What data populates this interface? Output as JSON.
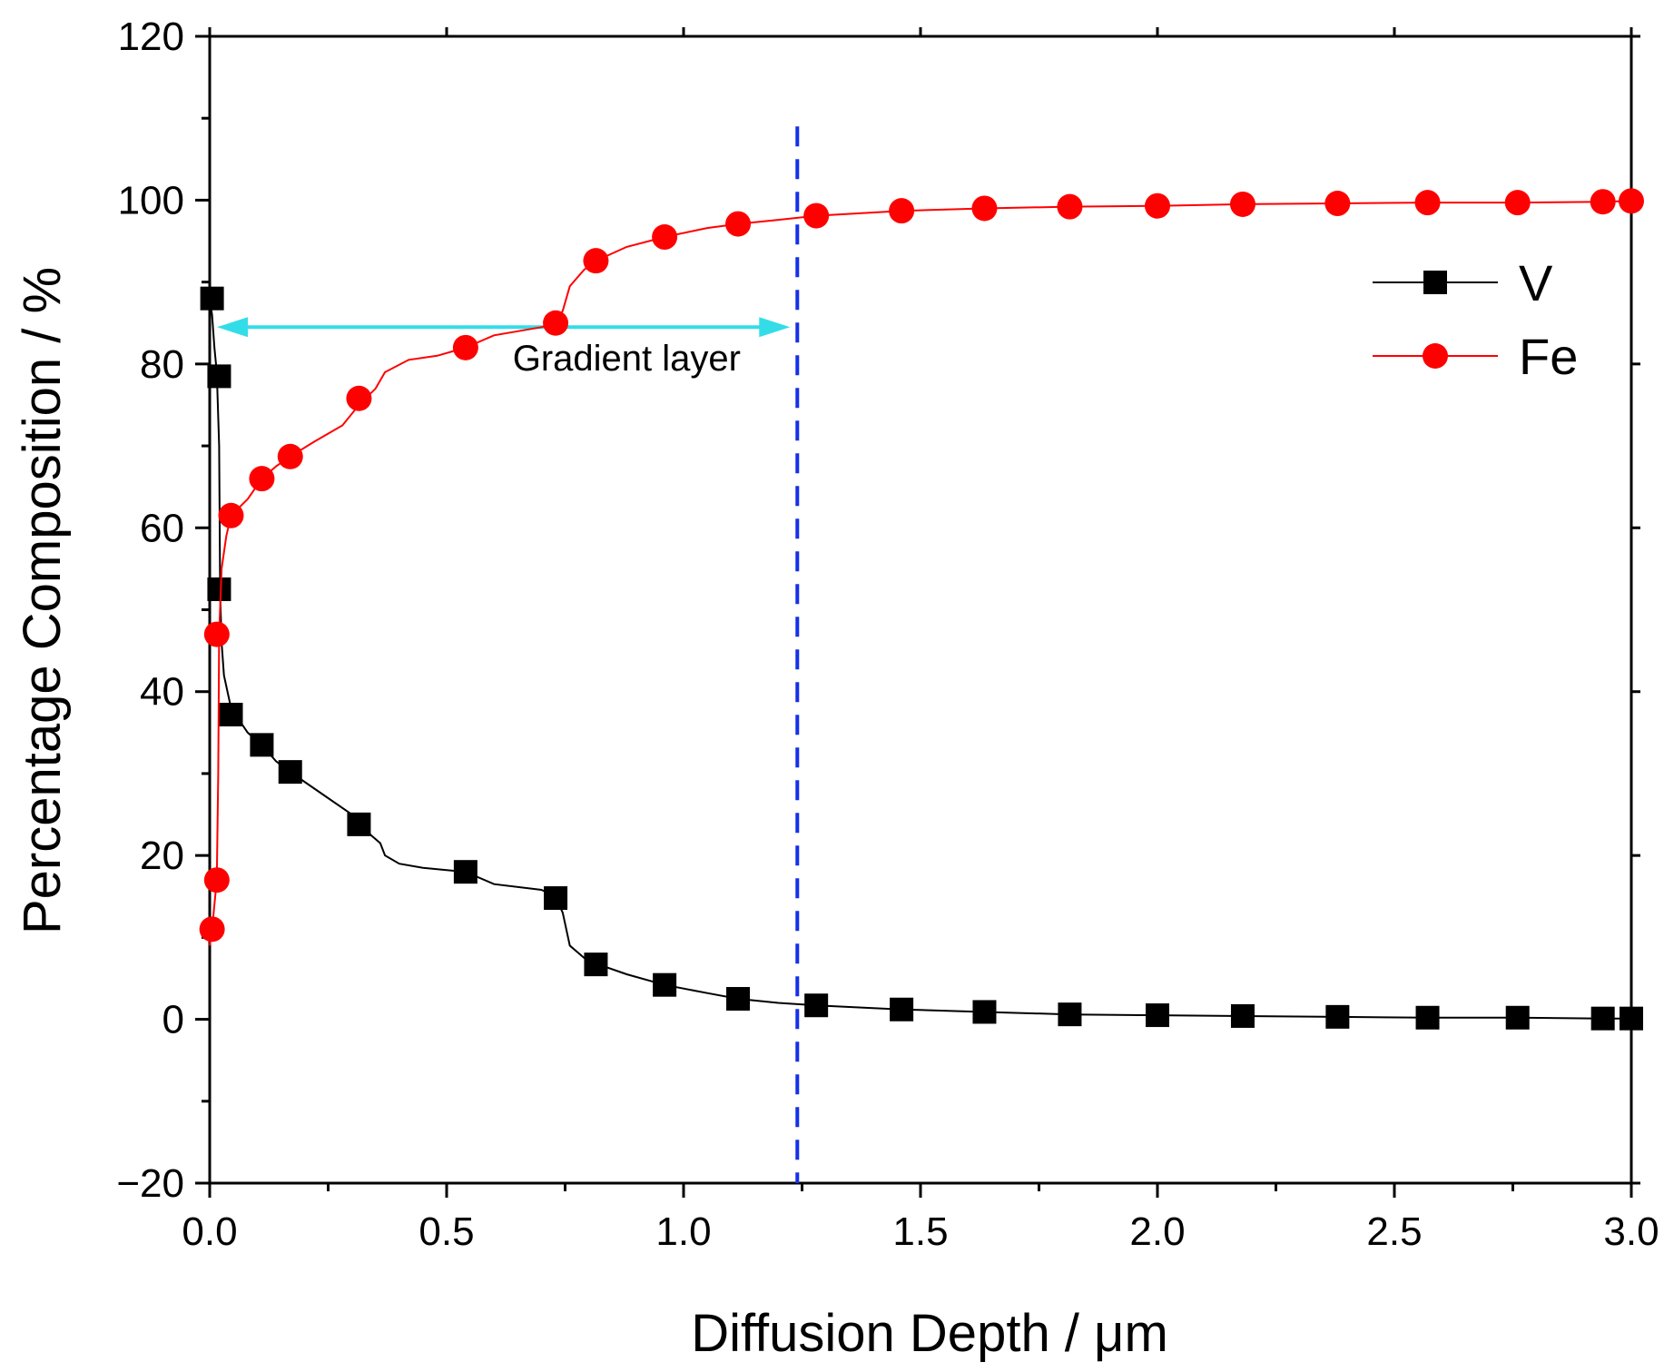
{
  "chart_data": {
    "type": "line",
    "xlabel": "Diffusion Depth / μm",
    "ylabel": "Percentage Composition / %",
    "xlim": [
      0,
      3.0
    ],
    "ylim": [
      -20,
      120
    ],
    "xticks": [
      0.0,
      0.5,
      1.0,
      1.5,
      2.0,
      2.5,
      3.0
    ],
    "xtick_labels": [
      "0.0",
      "0.5",
      "1.0",
      "1.5",
      "2.0",
      "2.5",
      "3.0"
    ],
    "yticks": [
      -20,
      0,
      20,
      40,
      60,
      80,
      100,
      120
    ],
    "ytick_labels": [
      "−20",
      "0",
      "20",
      "40",
      "60",
      "80",
      "100",
      "120"
    ],
    "grid": false,
    "legend_position": "top-right",
    "series": [
      {
        "name": "V",
        "color": "#000000",
        "marker": "square",
        "points": [
          [
            0.005,
            88
          ],
          [
            0.02,
            78.5
          ],
          [
            0.02,
            52.5
          ],
          [
            0.045,
            37.2
          ],
          [
            0.11,
            33.5
          ],
          [
            0.17,
            30.2
          ],
          [
            0.315,
            23.8
          ],
          [
            0.54,
            18
          ],
          [
            0.73,
            14.8
          ],
          [
            0.815,
            6.7
          ],
          [
            0.96,
            4.2
          ],
          [
            1.115,
            2.5
          ],
          [
            1.28,
            1.7
          ],
          [
            1.46,
            1.2
          ],
          [
            1.635,
            0.9
          ],
          [
            1.815,
            0.6
          ],
          [
            2.0,
            0.5
          ],
          [
            2.18,
            0.4
          ],
          [
            2.38,
            0.3
          ],
          [
            2.57,
            0.2
          ],
          [
            2.76,
            0.2
          ],
          [
            2.94,
            0.1
          ],
          [
            3.0,
            0.1
          ]
        ],
        "curve": [
          [
            0,
            88
          ],
          [
            0.005,
            86
          ],
          [
            0.01,
            82
          ],
          [
            0.015,
            79
          ],
          [
            0.02,
            70
          ],
          [
            0.022,
            52
          ],
          [
            0.025,
            46
          ],
          [
            0.03,
            42
          ],
          [
            0.045,
            38
          ],
          [
            0.08,
            35
          ],
          [
            0.11,
            33.5
          ],
          [
            0.14,
            31.5
          ],
          [
            0.17,
            30.2
          ],
          [
            0.2,
            29
          ],
          [
            0.25,
            27
          ],
          [
            0.3,
            25
          ],
          [
            0.34,
            22.5
          ],
          [
            0.36,
            21.5
          ],
          [
            0.37,
            20
          ],
          [
            0.4,
            19
          ],
          [
            0.45,
            18.5
          ],
          [
            0.54,
            18
          ],
          [
            0.6,
            16.5
          ],
          [
            0.7,
            15.8
          ],
          [
            0.73,
            15
          ],
          [
            0.745,
            13
          ],
          [
            0.76,
            9
          ],
          [
            0.79,
            7.5
          ],
          [
            0.82,
            6.7
          ],
          [
            0.88,
            5.5
          ],
          [
            0.96,
            4.2
          ],
          [
            1.05,
            3.2
          ],
          [
            1.115,
            2.5
          ],
          [
            1.2,
            2
          ],
          [
            1.28,
            1.7
          ],
          [
            1.46,
            1.2
          ],
          [
            1.635,
            0.9
          ],
          [
            1.815,
            0.6
          ],
          [
            2.0,
            0.5
          ],
          [
            2.18,
            0.4
          ],
          [
            2.38,
            0.3
          ],
          [
            2.57,
            0.2
          ],
          [
            2.76,
            0.2
          ],
          [
            2.94,
            0.1
          ],
          [
            3.0,
            0.1
          ]
        ]
      },
      {
        "name": "Fe",
        "color": "#ff0000",
        "marker": "circle",
        "points": [
          [
            0.005,
            11
          ],
          [
            0.015,
            17
          ],
          [
            0.015,
            47
          ],
          [
            0.045,
            61.5
          ],
          [
            0.11,
            66
          ],
          [
            0.17,
            68.7
          ],
          [
            0.315,
            75.8
          ],
          [
            0.54,
            82
          ],
          [
            0.73,
            85
          ],
          [
            0.815,
            92.6
          ],
          [
            0.96,
            95.5
          ],
          [
            1.115,
            97.1
          ],
          [
            1.28,
            98.1
          ],
          [
            1.46,
            98.7
          ],
          [
            1.635,
            99
          ],
          [
            1.815,
            99.2
          ],
          [
            2.0,
            99.3
          ],
          [
            2.18,
            99.5
          ],
          [
            2.38,
            99.6
          ],
          [
            2.57,
            99.7
          ],
          [
            2.76,
            99.7
          ],
          [
            2.94,
            99.8
          ],
          [
            3.0,
            99.9
          ]
        ],
        "curve": [
          [
            0,
            9
          ],
          [
            0.005,
            11
          ],
          [
            0.01,
            14
          ],
          [
            0.015,
            17
          ],
          [
            0.018,
            30
          ],
          [
            0.02,
            47
          ],
          [
            0.025,
            55
          ],
          [
            0.035,
            59
          ],
          [
            0.045,
            61.5
          ],
          [
            0.08,
            63.5
          ],
          [
            0.11,
            66
          ],
          [
            0.14,
            67.5
          ],
          [
            0.17,
            68.7
          ],
          [
            0.22,
            70.5
          ],
          [
            0.28,
            72.5
          ],
          [
            0.315,
            75
          ],
          [
            0.35,
            77
          ],
          [
            0.37,
            79
          ],
          [
            0.42,
            80.5
          ],
          [
            0.48,
            81
          ],
          [
            0.54,
            82
          ],
          [
            0.6,
            83.5
          ],
          [
            0.7,
            84.5
          ],
          [
            0.73,
            85
          ],
          [
            0.745,
            86.5
          ],
          [
            0.76,
            89.5
          ],
          [
            0.79,
            91.5
          ],
          [
            0.815,
            92.6
          ],
          [
            0.88,
            94.3
          ],
          [
            0.96,
            95.5
          ],
          [
            1.05,
            96.6
          ],
          [
            1.115,
            97.1
          ],
          [
            1.2,
            97.6
          ],
          [
            1.28,
            98.1
          ],
          [
            1.46,
            98.7
          ],
          [
            1.635,
            99
          ],
          [
            1.815,
            99.2
          ],
          [
            2.0,
            99.3
          ],
          [
            2.18,
            99.5
          ],
          [
            2.38,
            99.6
          ],
          [
            2.57,
            99.7
          ],
          [
            2.76,
            99.7
          ],
          [
            2.94,
            99.8
          ],
          [
            3.0,
            99.9
          ]
        ]
      }
    ],
    "annotations": {
      "gradient_arrow": {
        "label": "Gradient layer",
        "x_start": 0.0,
        "x_end": 1.24,
        "y": 84.5,
        "color": "#33dde8"
      },
      "boundary_line": {
        "x": 1.24,
        "color": "#1530e8",
        "style": "dashed"
      }
    }
  }
}
